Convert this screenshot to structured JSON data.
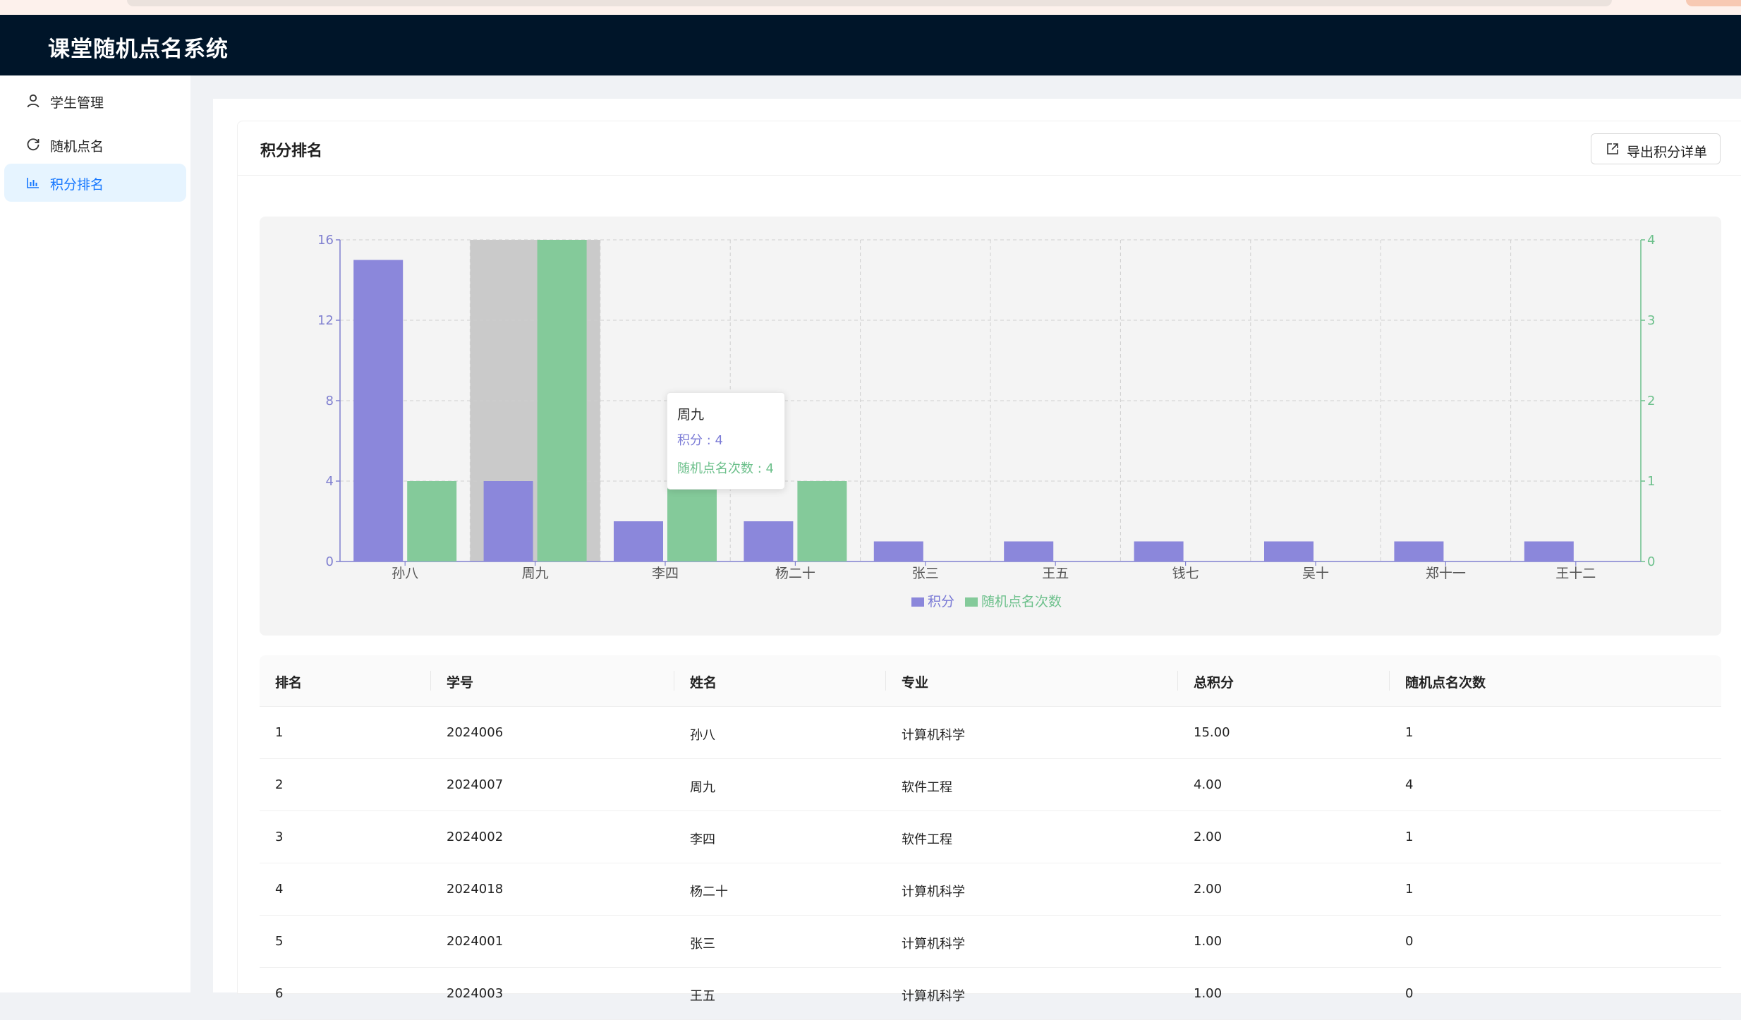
{
  "app": {
    "title": "课堂随机点名系统"
  },
  "sidebar": {
    "items": [
      {
        "label": "学生管理",
        "icon": "user-icon",
        "active": false
      },
      {
        "label": "随机点名",
        "icon": "reload-icon",
        "active": false
      },
      {
        "label": "积分排名",
        "icon": "bar-chart-icon",
        "active": true
      }
    ]
  },
  "card": {
    "title": "积分排名",
    "export_label": "导出积分详单"
  },
  "colors": {
    "score": "#8b87db",
    "calls": "#84ca9a",
    "highlight": "#cacaca",
    "active_menu": "#1677ff"
  },
  "chart_data": {
    "type": "bar",
    "categories": [
      "孙八",
      "周九",
      "李四",
      "杨二十",
      "张三",
      "王五",
      "钱七",
      "吴十",
      "郑十一",
      "王十二"
    ],
    "series": [
      {
        "name": "积分",
        "axis": "left",
        "values": [
          15,
          4,
          2,
          2,
          1,
          1,
          1,
          1,
          1,
          1
        ]
      },
      {
        "name": "随机点名次数",
        "axis": "right",
        "values": [
          1,
          4,
          1,
          1,
          0,
          0,
          0,
          0,
          0,
          0
        ]
      }
    ],
    "yLeft": {
      "ticks": [
        0,
        4,
        8,
        12,
        16
      ],
      "range": [
        0,
        16
      ]
    },
    "yRight": {
      "ticks": [
        0,
        1,
        2,
        3,
        4
      ],
      "range": [
        0,
        4
      ]
    },
    "highlighted_category": "周九",
    "grid": true,
    "legend": "bottom-center",
    "tooltip": {
      "title": "周九",
      "line1": "积分 : 4",
      "line2": "随机点名次数 : 4"
    }
  },
  "table": {
    "headers": [
      "排名",
      "学号",
      "姓名",
      "专业",
      "总积分",
      "随机点名次数"
    ],
    "rows": [
      [
        "1",
        "2024006",
        "孙八",
        "计算机科学",
        "15.00",
        "1"
      ],
      [
        "2",
        "2024007",
        "周九",
        "软件工程",
        "4.00",
        "4"
      ],
      [
        "3",
        "2024002",
        "李四",
        "软件工程",
        "2.00",
        "1"
      ],
      [
        "4",
        "2024018",
        "杨二十",
        "计算机科学",
        "2.00",
        "1"
      ],
      [
        "5",
        "2024001",
        "张三",
        "计算机科学",
        "1.00",
        "0"
      ],
      [
        "6",
        "2024003",
        "王五",
        "计算机科学",
        "1.00",
        "0"
      ]
    ]
  }
}
